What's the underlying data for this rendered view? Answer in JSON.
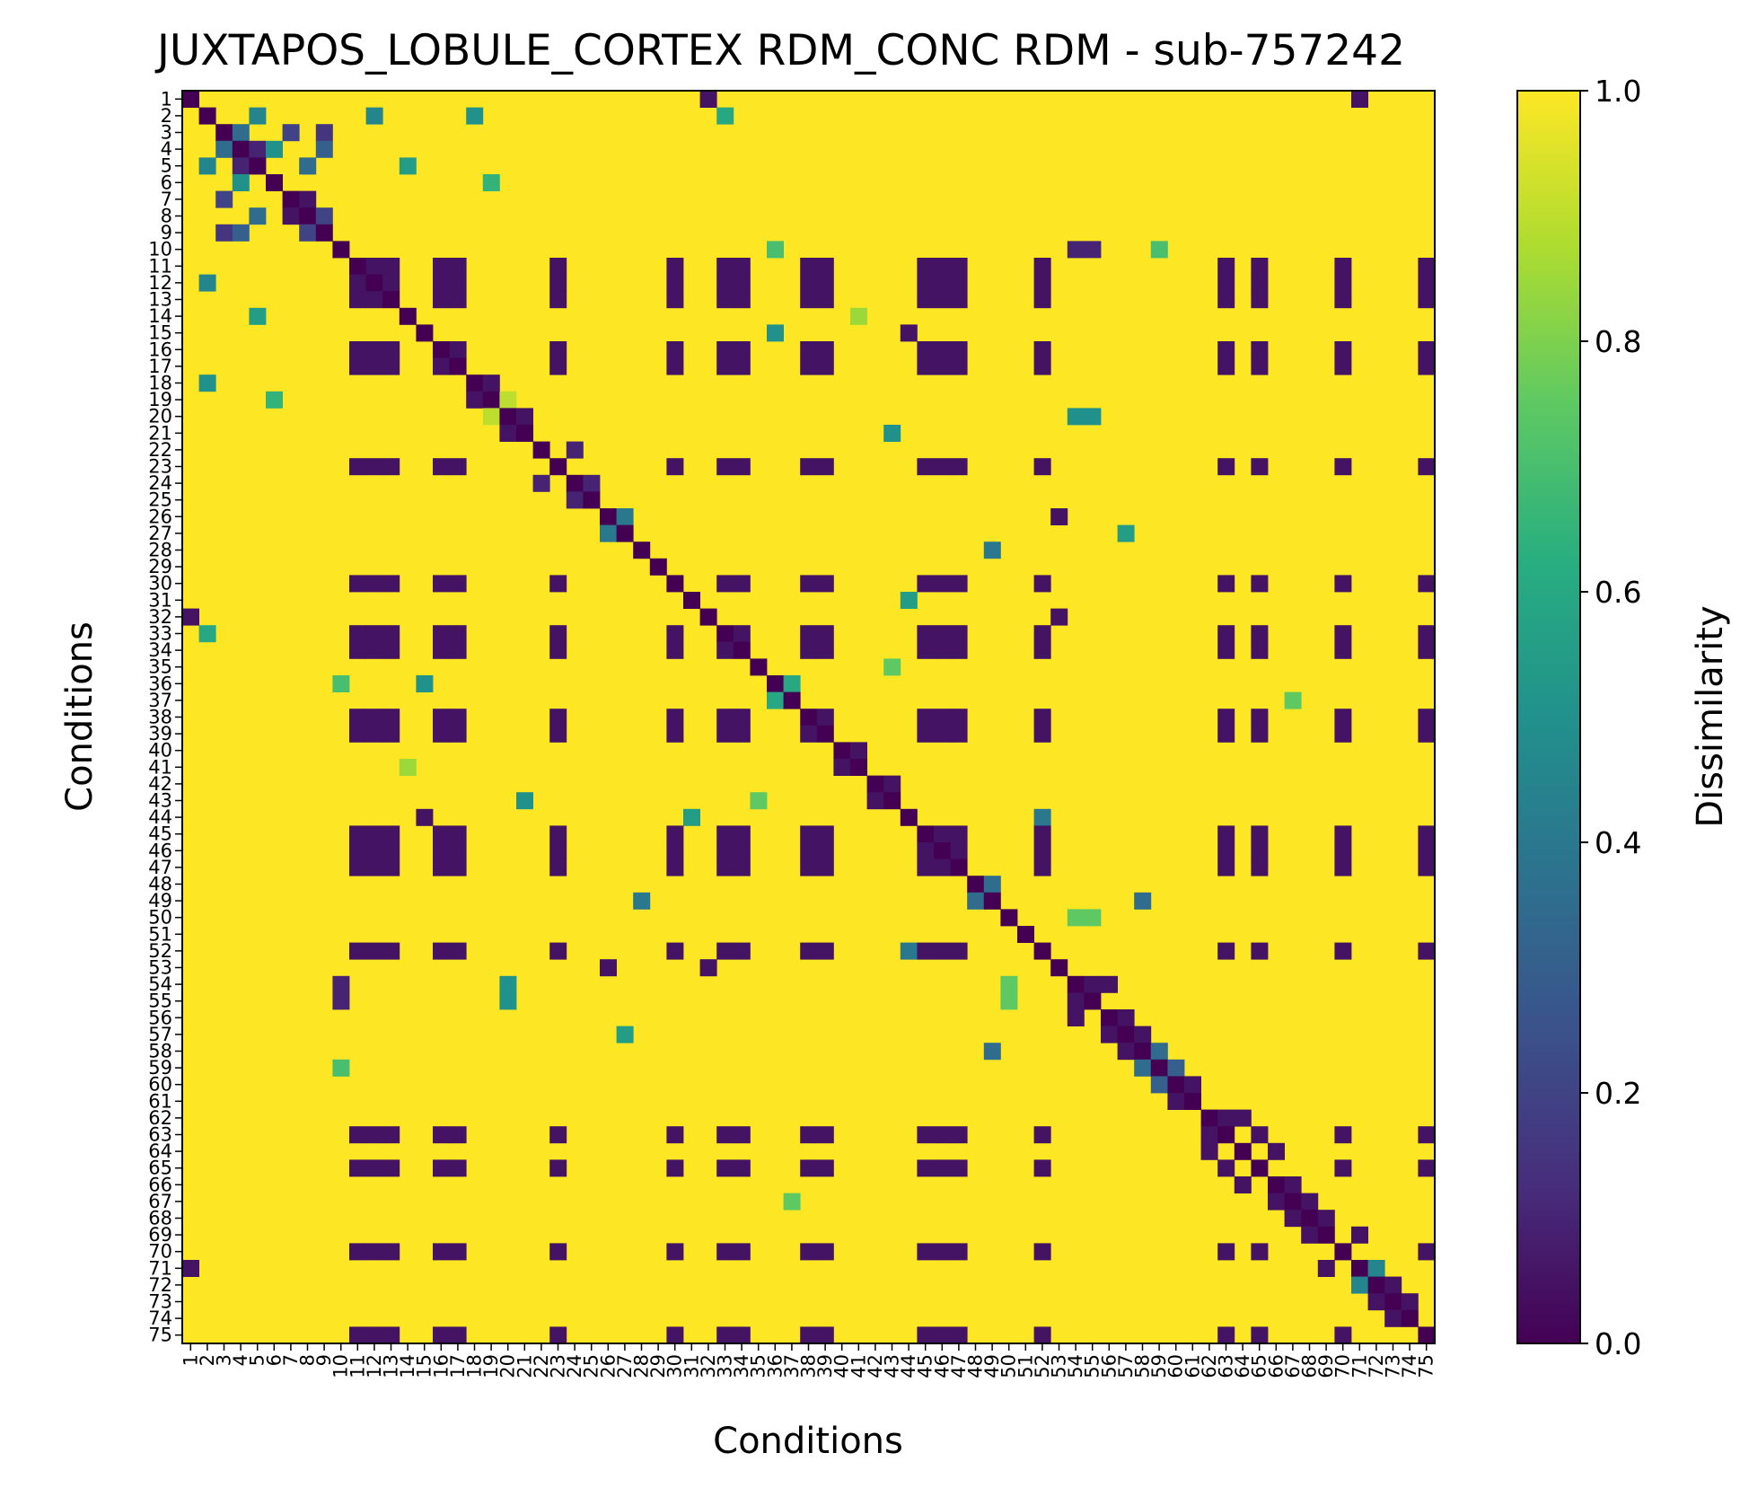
{
  "chart_data": {
    "type": "heatmap",
    "title": "JUXTAPOS_LOBULE_CORTEX RDM_CONC RDM - sub-757242",
    "xlabel": "Conditions",
    "ylabel": "Conditions",
    "n_conditions": 75,
    "conditions": [
      "1",
      "2",
      "3",
      "4",
      "5",
      "6",
      "7",
      "8",
      "9",
      "10",
      "11",
      "12",
      "13",
      "14",
      "15",
      "16",
      "17",
      "18",
      "19",
      "20",
      "21",
      "22",
      "23",
      "24",
      "25",
      "26",
      "27",
      "28",
      "29",
      "30",
      "31",
      "32",
      "33",
      "34",
      "35",
      "36",
      "37",
      "38",
      "39",
      "40",
      "41",
      "42",
      "43",
      "44",
      "45",
      "46",
      "47",
      "48",
      "49",
      "50",
      "51",
      "52",
      "53",
      "54",
      "55",
      "56",
      "57",
      "58",
      "59",
      "60",
      "61",
      "62",
      "63",
      "64",
      "65",
      "66",
      "67",
      "68",
      "69",
      "70",
      "71",
      "72",
      "73",
      "74",
      "75"
    ],
    "value_range": [
      0.0,
      1.0
    ],
    "background_value": 1.0,
    "diagonal_value": 0.0,
    "colormap": "viridis",
    "colorbar": {
      "label": "Dissimilarity",
      "ticks": [
        0.0,
        0.2,
        0.4,
        0.6,
        0.8,
        1.0
      ],
      "tick_labels": [
        "0.0",
        "0.2",
        "0.4",
        "0.6",
        "0.8",
        "1.0"
      ]
    },
    "cluster_conditions": [
      11,
      12,
      13,
      16,
      17,
      23,
      30,
      33,
      34,
      38,
      39,
      45,
      46,
      47,
      52,
      63,
      65,
      70,
      75
    ],
    "cluster_value": 0.05,
    "near_pairs": [
      [
        1,
        71,
        0.05
      ],
      [
        1,
        32,
        0.05
      ],
      [
        2,
        5,
        0.45
      ],
      [
        2,
        12,
        0.45
      ],
      [
        2,
        18,
        0.5
      ],
      [
        2,
        33,
        0.6
      ],
      [
        3,
        4,
        0.35
      ],
      [
        3,
        7,
        0.2
      ],
      [
        3,
        9,
        0.15
      ],
      [
        4,
        5,
        0.1
      ],
      [
        4,
        6,
        0.5
      ],
      [
        4,
        9,
        0.3
      ],
      [
        5,
        8,
        0.35
      ],
      [
        5,
        14,
        0.55
      ],
      [
        6,
        19,
        0.65
      ],
      [
        7,
        8,
        0.05
      ],
      [
        8,
        9,
        0.2
      ],
      [
        10,
        36,
        0.7
      ],
      [
        10,
        54,
        0.1
      ],
      [
        10,
        55,
        0.1
      ],
      [
        10,
        59,
        0.7
      ],
      [
        15,
        36,
        0.5
      ],
      [
        15,
        44,
        0.05
      ],
      [
        18,
        19,
        0.05
      ],
      [
        20,
        21,
        0.05
      ],
      [
        20,
        54,
        0.5
      ],
      [
        20,
        55,
        0.5
      ],
      [
        21,
        43,
        0.5
      ],
      [
        22,
        24,
        0.1
      ],
      [
        24,
        25,
        0.1
      ],
      [
        26,
        53,
        0.05
      ],
      [
        27,
        57,
        0.55
      ],
      [
        28,
        49,
        0.4
      ],
      [
        31,
        44,
        0.55
      ],
      [
        32,
        53,
        0.05
      ],
      [
        35,
        43,
        0.75
      ],
      [
        37,
        67,
        0.75
      ],
      [
        40,
        41,
        0.05
      ],
      [
        42,
        43,
        0.05
      ],
      [
        48,
        49,
        0.35
      ],
      [
        49,
        58,
        0.35
      ],
      [
        50,
        54,
        0.75
      ],
      [
        50,
        55,
        0.75
      ],
      [
        54,
        55,
        0.05
      ],
      [
        54,
        56,
        0.05
      ],
      [
        56,
        57,
        0.05
      ],
      [
        57,
        58,
        0.05
      ],
      [
        58,
        59,
        0.35
      ],
      [
        59,
        60,
        0.3
      ],
      [
        60,
        61,
        0.05
      ],
      [
        62,
        63,
        0.05
      ],
      [
        62,
        64,
        0.05
      ],
      [
        64,
        66,
        0.05
      ],
      [
        66,
        67,
        0.05
      ],
      [
        67,
        68,
        0.05
      ],
      [
        68,
        69,
        0.05
      ],
      [
        69,
        71,
        0.05
      ],
      [
        71,
        72,
        0.45
      ],
      [
        72,
        73,
        0.05
      ],
      [
        73,
        74,
        0.05
      ],
      [
        14,
        41,
        0.85
      ],
      [
        19,
        20,
        0.9
      ],
      [
        26,
        27,
        0.4
      ],
      [
        36,
        37,
        0.6
      ],
      [
        44,
        52,
        0.4
      ]
    ]
  }
}
